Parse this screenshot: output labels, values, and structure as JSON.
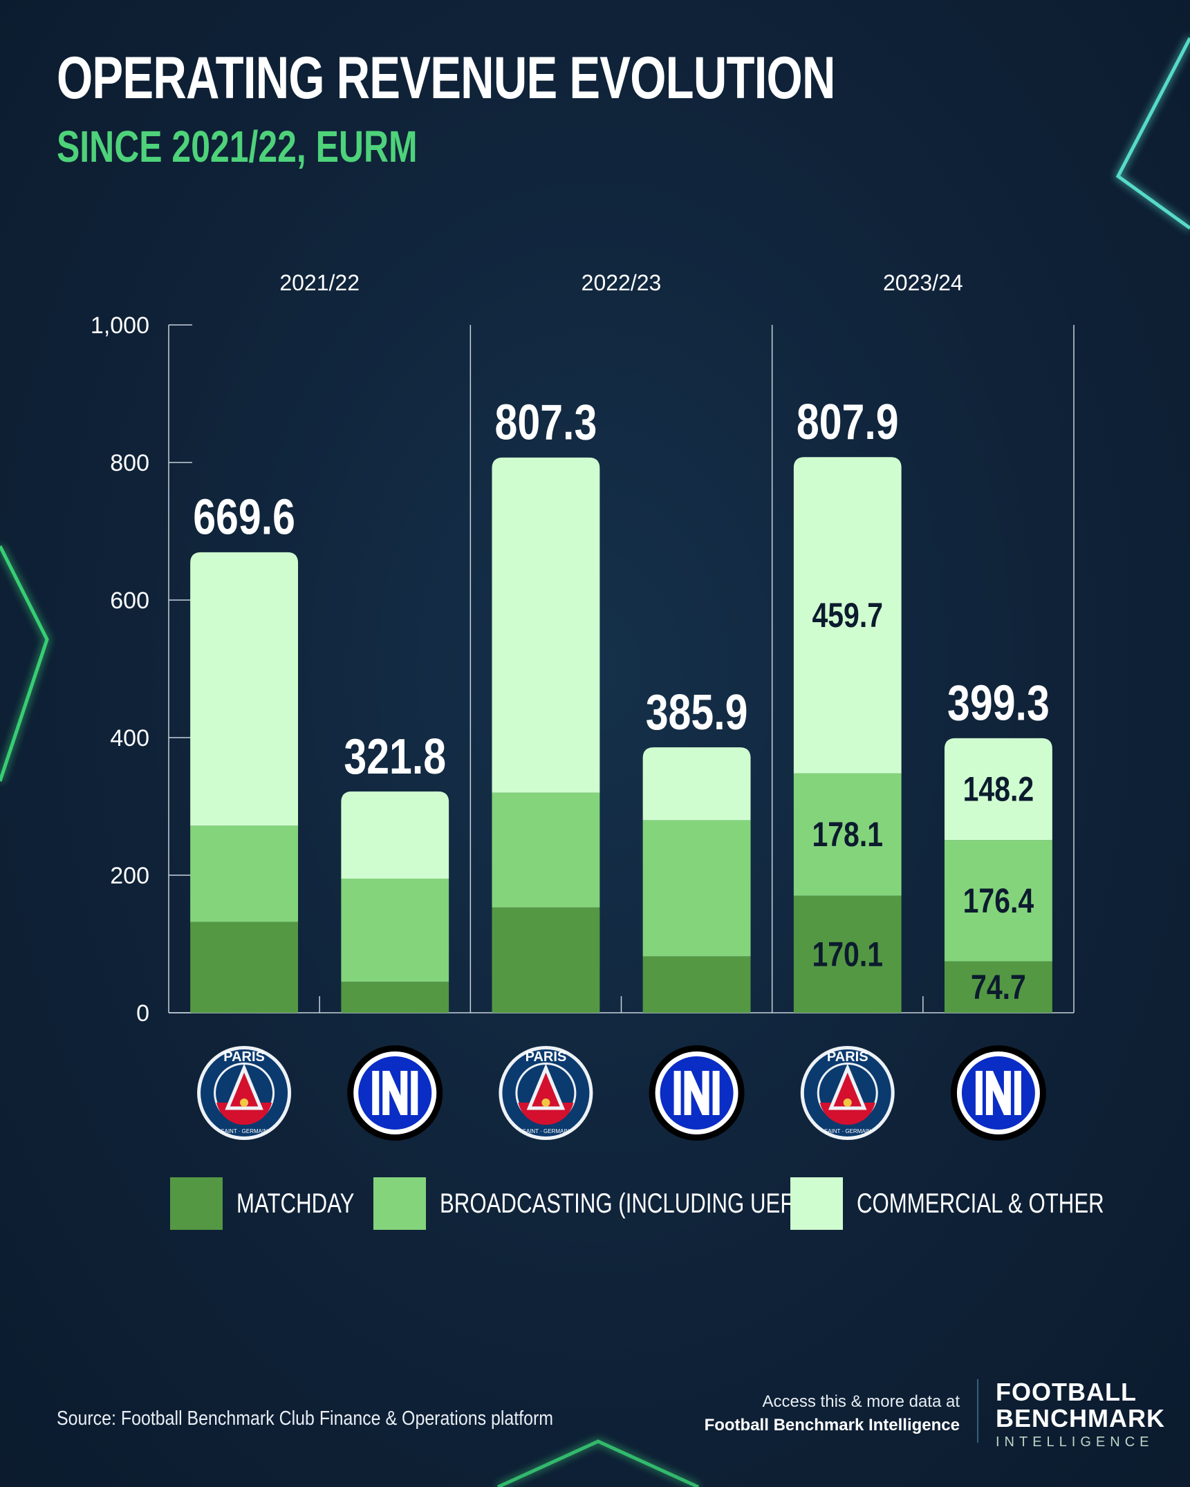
{
  "title": "OPERATING REVENUE EVOLUTION",
  "subtitle": "SINCE 2021/22, EURM",
  "chart_data": {
    "type": "bar",
    "stacked": true,
    "ylim": [
      0,
      1000
    ],
    "yticks": [
      0,
      200,
      400,
      600,
      800,
      1000
    ],
    "ytick_labels": [
      "0",
      "200",
      "400",
      "600",
      "800",
      "1,000"
    ],
    "seasons": [
      "2021/22",
      "2022/23",
      "2023/24"
    ],
    "clubs_per_season": [
      "PSG",
      "Inter"
    ],
    "series": [
      {
        "name": "MATCHDAY",
        "color": "#549844",
        "values": [
          132,
          45,
          153,
          82,
          170.1,
          74.7
        ]
      },
      {
        "name": "BROADCASTING (INCLUDING UEFA)",
        "color": "#84d47c",
        "values": [
          140,
          150,
          167,
          198,
          178.1,
          176.4
        ]
      },
      {
        "name": "COMMERCIAL & OTHER",
        "color": "#d0fdd0",
        "values": [
          397.6,
          126.8,
          487.3,
          105.9,
          459.7,
          148.2
        ]
      }
    ],
    "totals": [
      "669.6",
      "321.8",
      "807.3",
      "385.9",
      "807.9",
      "399.3"
    ],
    "segment_labels": [
      [
        null,
        null,
        null
      ],
      [
        null,
        null,
        null
      ],
      [
        null,
        null,
        null
      ],
      [
        null,
        null,
        null
      ],
      [
        "170.1",
        "178.1",
        "459.7"
      ],
      [
        "74.7",
        "176.4",
        "148.2"
      ]
    ],
    "legend_position": "bottom",
    "grid": false
  },
  "legend": [
    {
      "label": "MATCHDAY",
      "color": "#549844"
    },
    {
      "label": "BROADCASTING (INCLUDING UEFA)",
      "color": "#84d47c"
    },
    {
      "label": "COMMERCIAL & OTHER",
      "color": "#d0fdd0"
    }
  ],
  "logos": [
    {
      "club": "PSG",
      "icon": "psg-crest",
      "text": "PARIS",
      "subtext": "SAINT · GERMAIN"
    },
    {
      "club": "Inter",
      "icon": "inter-crest",
      "text": "IM"
    },
    {
      "club": "PSG",
      "icon": "psg-crest",
      "text": "PARIS",
      "subtext": "SAINT · GERMAIN"
    },
    {
      "club": "Inter",
      "icon": "inter-crest",
      "text": "IM"
    },
    {
      "club": "PSG",
      "icon": "psg-crest",
      "text": "PARIS",
      "subtext": "SAINT · GERMAIN"
    },
    {
      "club": "Inter",
      "icon": "inter-crest",
      "text": "IM"
    }
  ],
  "footer": {
    "source": "Source: Football Benchmark Club Finance & Operations platform",
    "access_line1": "Access this & more data at",
    "access_line2": "Football Benchmark Intelligence",
    "brand_line1": "FOOTBALL",
    "brand_line2": "BENCHMARK",
    "brand_line3": "INTELLIGENCE"
  },
  "colors": {
    "background": "#0f2238",
    "subtitle": "#4ed27a",
    "axis": "#c8d2dc",
    "label_dark": "#0c1b2e"
  }
}
